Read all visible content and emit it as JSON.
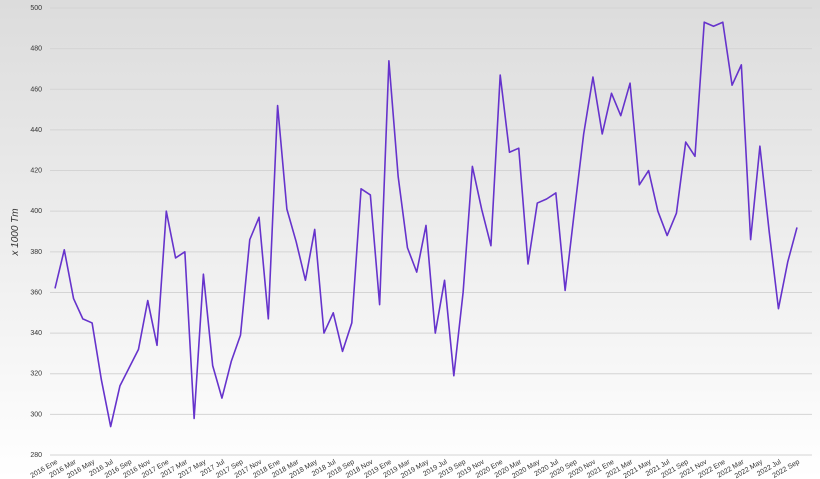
{
  "chart_data": {
    "type": "line",
    "y_label": "x 1000 Tm",
    "categories": [
      "2016 Ene",
      null,
      "2016 Mar",
      null,
      "2016 May",
      null,
      "2016 Jul",
      null,
      "2016 Sep",
      null,
      "2016 Nov",
      null,
      "2017 Ene",
      null,
      "2017 Mar",
      null,
      "2017 May",
      null,
      "2017 Jul",
      null,
      "2017 Sep",
      null,
      "2017 Nov",
      null,
      "2018 Ene",
      null,
      "2018 Mar",
      null,
      "2018 May",
      null,
      "2018 Jul",
      null,
      "2018 Sep",
      null,
      "2018 Nov",
      null,
      "2019 Ene",
      null,
      "2019 Mar",
      null,
      "2019 May",
      null,
      "2019 Jul",
      null,
      "2019 Sep",
      null,
      "2019 Nov",
      null,
      "2020 Ene",
      null,
      "2020 Mar",
      null,
      "2020 May",
      null,
      "2020 Jul",
      null,
      "2020 Sep",
      null,
      "2020 Nov",
      null,
      "2021 Ene",
      null,
      "2021 Mar",
      null,
      "2021 May",
      null,
      "2021 Jul",
      null,
      "2021 Sep",
      null,
      "2021 Nov",
      null,
      "2022 Ene",
      null,
      "2022 Mar",
      null,
      "2022 May",
      null,
      "2022 Jul",
      null,
      "2022 Sep"
    ],
    "series": [
      {
        "color": "#6633cc",
        "values": [
          362,
          381,
          357,
          347,
          345,
          317,
          294,
          314,
          323,
          332,
          356,
          334,
          400,
          377,
          380,
          298,
          369,
          324,
          308,
          326,
          339,
          386,
          397,
          347,
          452,
          401,
          385,
          366,
          391,
          340,
          350,
          331,
          345,
          411,
          408,
          354,
          474,
          417,
          382,
          370,
          393,
          340,
          366,
          319,
          360,
          422,
          401,
          383,
          467,
          429,
          431,
          374,
          404,
          406,
          409,
          361,
          400,
          438,
          466,
          438,
          458,
          447,
          463,
          413,
          420,
          400,
          388,
          399,
          434,
          427,
          493,
          491,
          493,
          462,
          472,
          386,
          432,
          390,
          352,
          375,
          392
        ]
      }
    ],
    "ylim": [
      280,
      500
    ],
    "yticks": [
      280,
      300,
      320,
      340,
      360,
      380,
      400,
      420,
      440,
      460,
      480,
      500
    ],
    "grid": true
  }
}
